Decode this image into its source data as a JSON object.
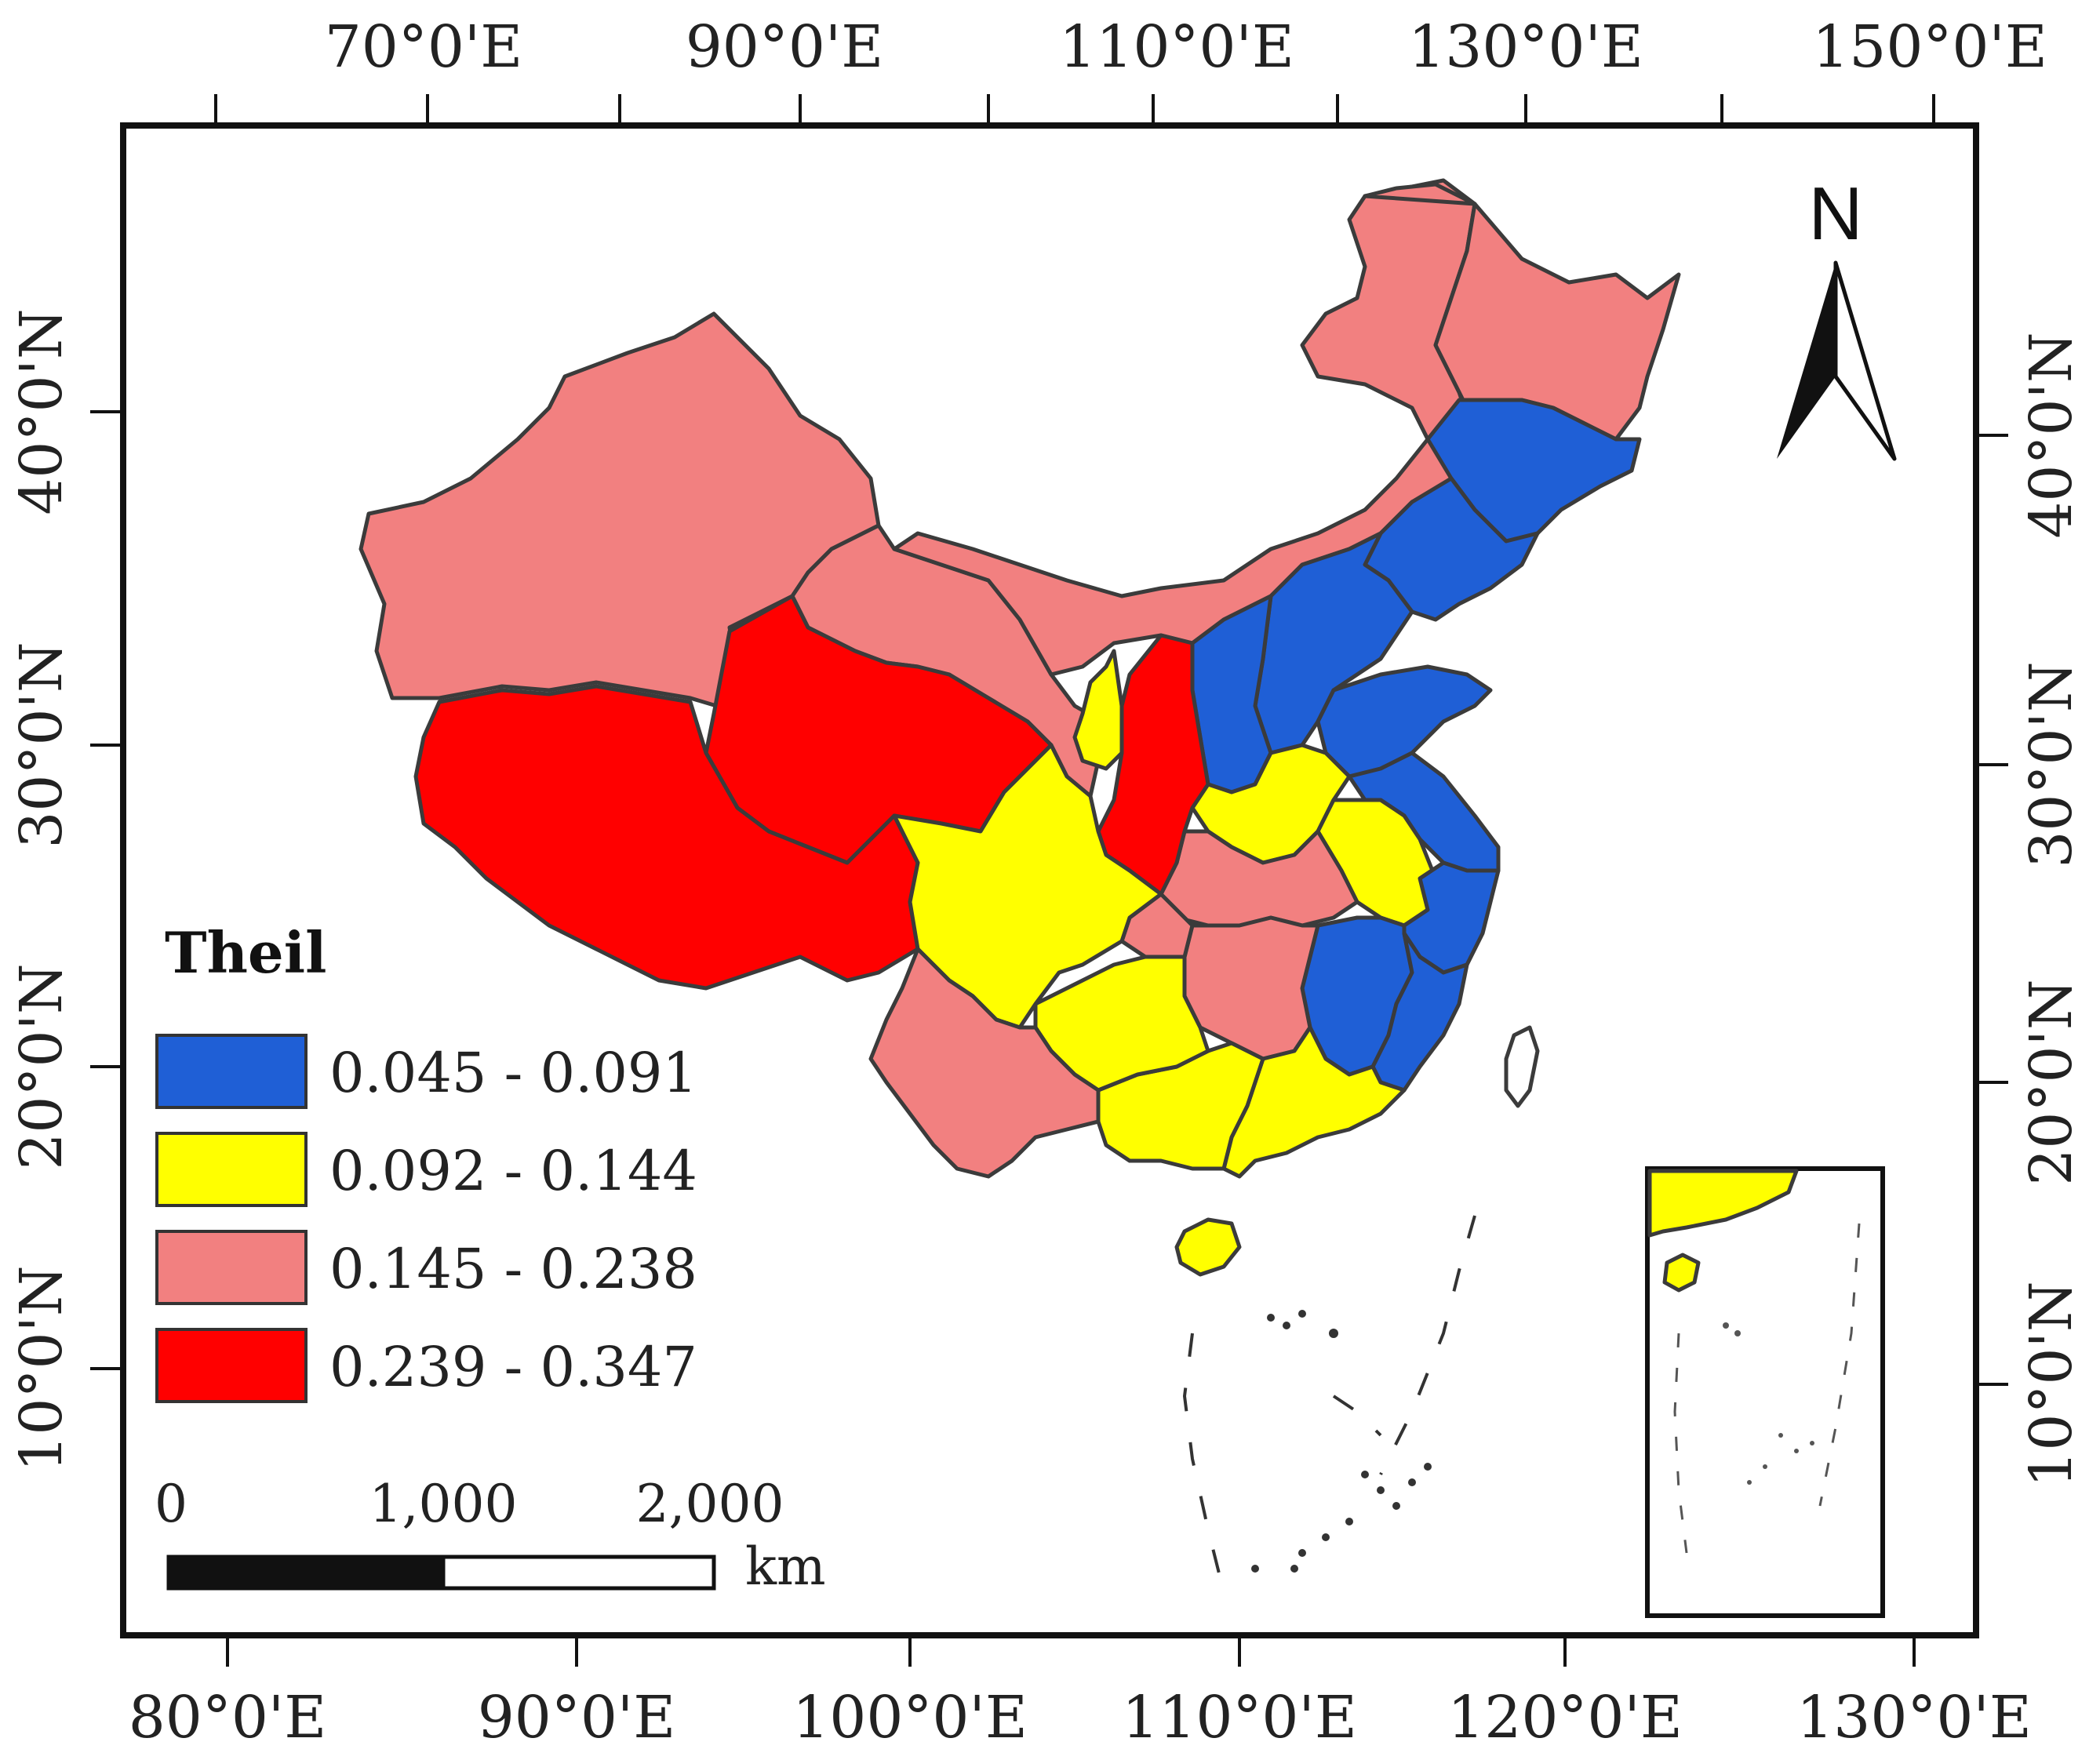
{
  "top_axis": {
    "ticks": [
      "70°0'E",
      "90°0'E",
      "110°0'E",
      "130°0'E",
      "150°0'E"
    ]
  },
  "bottom_axis": {
    "ticks": [
      "80°0'E",
      "90°0'E",
      "100°0'E",
      "110°0'E",
      "120°0'E",
      "130°0'E"
    ]
  },
  "left_axis": {
    "ticks": [
      "40°0'N",
      "30°0'N",
      "20°0'N",
      "10°0'N"
    ]
  },
  "right_axis": {
    "ticks": [
      "40°0'N",
      "30°0'N",
      "20°0'N",
      "10°0'N"
    ]
  },
  "north_arrow": {
    "letter": "N"
  },
  "legend": {
    "title": "Theil",
    "classes": [
      {
        "label": "0.045 - 0.091",
        "color": "#1f5fd6"
      },
      {
        "label": "0.092 - 0.144",
        "color": "#ffff00"
      },
      {
        "label": "0.145 - 0.238",
        "color": "#f28080"
      },
      {
        "label": "0.239 - 0.347",
        "color": "#ff0000"
      }
    ]
  },
  "scale_bar": {
    "labels": [
      "0",
      "1,000",
      "2,000"
    ],
    "unit": "km"
  },
  "colors": {
    "low": "#1f5fd6",
    "mid_low": "#ffff00",
    "mid_high": "#f28080",
    "high": "#ff0000",
    "border": "#3b3b3b",
    "frame": "#111111"
  }
}
